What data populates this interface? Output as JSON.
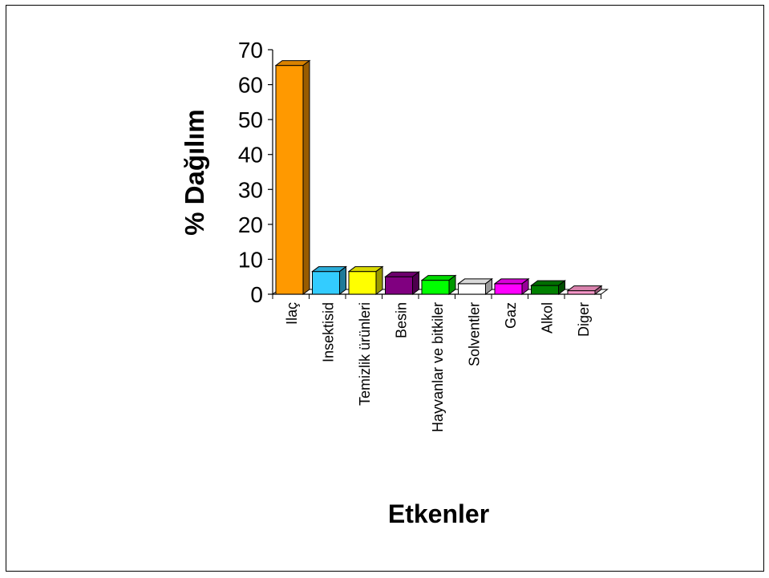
{
  "chart_data": {
    "type": "bar",
    "title": "",
    "xlabel": "Etkenler",
    "ylabel": "% Dağılım",
    "ylim": [
      0,
      70
    ],
    "yticks": [
      0,
      10,
      20,
      30,
      40,
      50,
      60,
      70
    ],
    "grid": false,
    "legend": "none",
    "style": "3d",
    "categories": [
      "Ilaç",
      "Insektisid",
      "Temizlik ürünleri",
      "Besin",
      "Hayvanlar ve bitkiler",
      "Solventler",
      "Gaz",
      "Alkol",
      "Diger"
    ],
    "values": [
      65.5,
      6.5,
      6.5,
      5,
      4,
      3,
      3,
      2.5,
      1
    ],
    "colors": [
      "#FF9900",
      "#33CCFF",
      "#FFFF00",
      "#800080",
      "#00FF00",
      "#FFFFFF",
      "#FF00FF",
      "#008000",
      "#FF99CC"
    ]
  }
}
